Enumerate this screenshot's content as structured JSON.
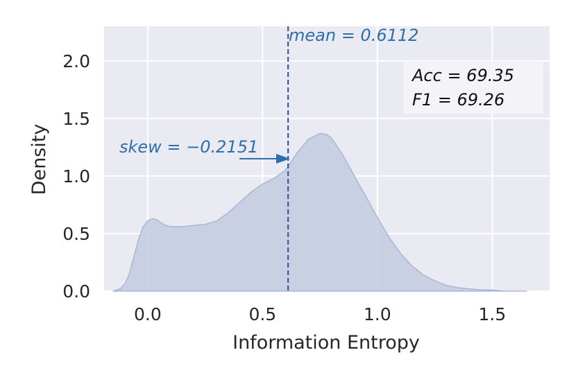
{
  "chart_data": {
    "type": "area",
    "xlabel": "Information Entropy",
    "ylabel": "Density",
    "xlim": [
      -0.19,
      1.75
    ],
    "ylim": [
      0,
      2.3
    ],
    "x_ticks": [
      "0.0",
      "0.5",
      "1.0",
      "1.5"
    ],
    "y_ticks": [
      "0.0",
      "0.5",
      "1.0",
      "1.5",
      "2.0"
    ],
    "grid": true,
    "series": [
      {
        "x": [
          -0.15,
          -0.12,
          -0.1,
          -0.08,
          -0.06,
          -0.04,
          -0.02,
          0.0,
          0.02,
          0.04,
          0.06,
          0.08,
          0.1,
          0.15,
          0.2,
          0.25,
          0.3,
          0.35,
          0.4,
          0.45,
          0.5,
          0.55,
          0.6,
          0.65,
          0.7,
          0.75,
          0.78,
          0.8,
          0.85,
          0.9,
          0.95,
          1.0,
          1.05,
          1.1,
          1.15,
          1.2,
          1.25,
          1.3,
          1.35,
          1.4,
          1.45,
          1.5,
          1.55,
          1.6,
          1.65
        ],
        "y": [
          0.0,
          0.02,
          0.06,
          0.15,
          0.3,
          0.45,
          0.56,
          0.61,
          0.63,
          0.62,
          0.59,
          0.57,
          0.56,
          0.56,
          0.57,
          0.58,
          0.61,
          0.68,
          0.77,
          0.86,
          0.93,
          0.98,
          1.05,
          1.2,
          1.32,
          1.37,
          1.36,
          1.33,
          1.18,
          1.0,
          0.82,
          0.64,
          0.47,
          0.33,
          0.22,
          0.14,
          0.09,
          0.05,
          0.03,
          0.02,
          0.01,
          0.01,
          0.0,
          0.0,
          0.0
        ]
      }
    ],
    "mean_value": 0.6112,
    "mean_label": "mean = 0.6112",
    "skew_label": "skew = −0.2151",
    "stats_box": {
      "acc_label": "Acc = 69.35",
      "f1_label": "F1   = 69.26"
    },
    "colors": {
      "background": "#eaeaf2",
      "grid": "#ffffff",
      "fill": "#c3cbe0",
      "outline": "#a9b6d6",
      "annotation": "#2e6fab",
      "mean_line": "#3b5a99"
    }
  }
}
